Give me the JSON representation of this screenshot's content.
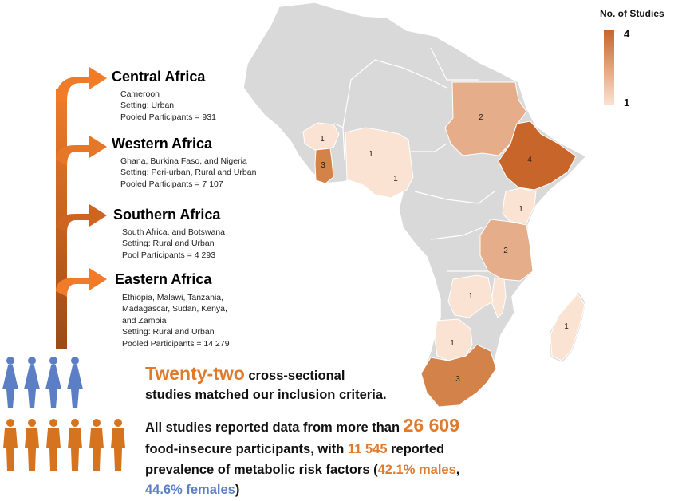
{
  "legend": {
    "title": "No. of Studies",
    "max_label": "4",
    "min_label": "1",
    "max_color": "#c8652a",
    "min_color": "#fbe3d3"
  },
  "regions": [
    {
      "title": "Central Africa",
      "lines": [
        "Cameroon",
        "Setting: Urban",
        "Pooled Participants = 931"
      ]
    },
    {
      "title": "Western Africa",
      "lines": [
        "Ghana, Burkina Faso, and Nigeria",
        "Setting: Peri-urban, Rural and Urban",
        "Pooled Participants = 7 107"
      ]
    },
    {
      "title": "Southern Africa",
      "lines": [
        "South Africa, and Botswana",
        "Setting: Rural and Urban",
        "Pool Participants =  4 293"
      ]
    },
    {
      "title": "Eastern Africa",
      "lines": [
        "Ethiopia, Malawi, Tanzania,",
        "Madagascar, Sudan, Kenya,",
        "and Zambia",
        "Setting: Rural and Urban",
        "Pooled Participants = 14 279"
      ]
    }
  ],
  "map_labels": {
    "burkina_faso": "1",
    "ghana": "3",
    "nigeria_north": "1",
    "nigeria_south": "1",
    "sudan": "2",
    "ethiopia": "4",
    "kenya": "1",
    "tanzania": "2",
    "zambia": "1",
    "botswana": "1",
    "south_africa": "3",
    "madagascar": "1"
  },
  "summary": {
    "line1_highlight": "Twenty-two",
    "line1_rest": " cross-sectional",
    "line2": "studies matched our inclusion criteria.",
    "line3_prefix": "All studies reported data from more than ",
    "line3_number": "26 609",
    "line4_prefix": "food-insecure participants, with ",
    "line4_number": "11 545",
    "line4_suffix": " reported",
    "line5_prefix": "prevalence of metabolic risk factors (",
    "line5_males": "42.1% males",
    "line5_comma": ",",
    "line6_females": "44.6% females",
    "line6_suffix": ")"
  },
  "colors": {
    "arrow": "#e07a2c",
    "female_icon": "#5b7ec4",
    "male_icon": "#d5731f",
    "highlight_orange": "#e07a2c",
    "highlight_blue": "#5b7ec4",
    "land": "#d9d9d9"
  }
}
